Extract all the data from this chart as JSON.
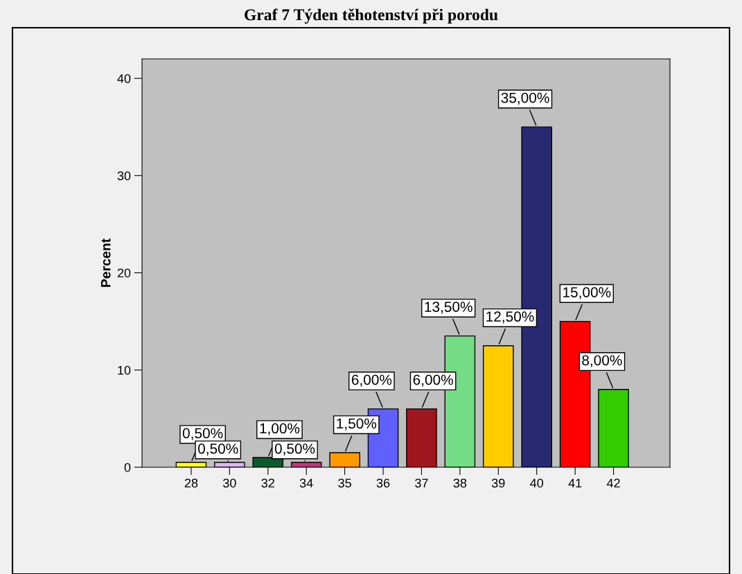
{
  "chart_data": {
    "type": "bar",
    "title": "Graf 7 Týden těhotenství při porodu",
    "ylabel": "Percent",
    "categories": [
      "28",
      "30",
      "32",
      "34",
      "35",
      "36",
      "37",
      "38",
      "39",
      "40",
      "41",
      "42"
    ],
    "values": [
      0.5,
      0.5,
      1.0,
      0.5,
      1.5,
      6.0,
      6.0,
      13.5,
      12.5,
      35.0,
      15.0,
      8.0
    ],
    "colors": [
      "#ffff33",
      "#d9b8ec",
      "#0b5a2e",
      "#b83b7c",
      "#ff9900",
      "#6060ff",
      "#a0161e",
      "#73dc84",
      "#ffcc00",
      "#292972",
      "#ff0000",
      "#33cc00"
    ],
    "value_labels": [
      "0,50%",
      "0,50%",
      "1,00%",
      "0,50%",
      "1,50%",
      "6,00%",
      "6,00%",
      "13,50%",
      "12,50%",
      "35,00%",
      "15,00%",
      "8,00%"
    ],
    "ylim": [
      0,
      42
    ],
    "yticks": [
      0,
      10,
      20,
      30,
      40
    ],
    "grid": false,
    "legend": false
  }
}
